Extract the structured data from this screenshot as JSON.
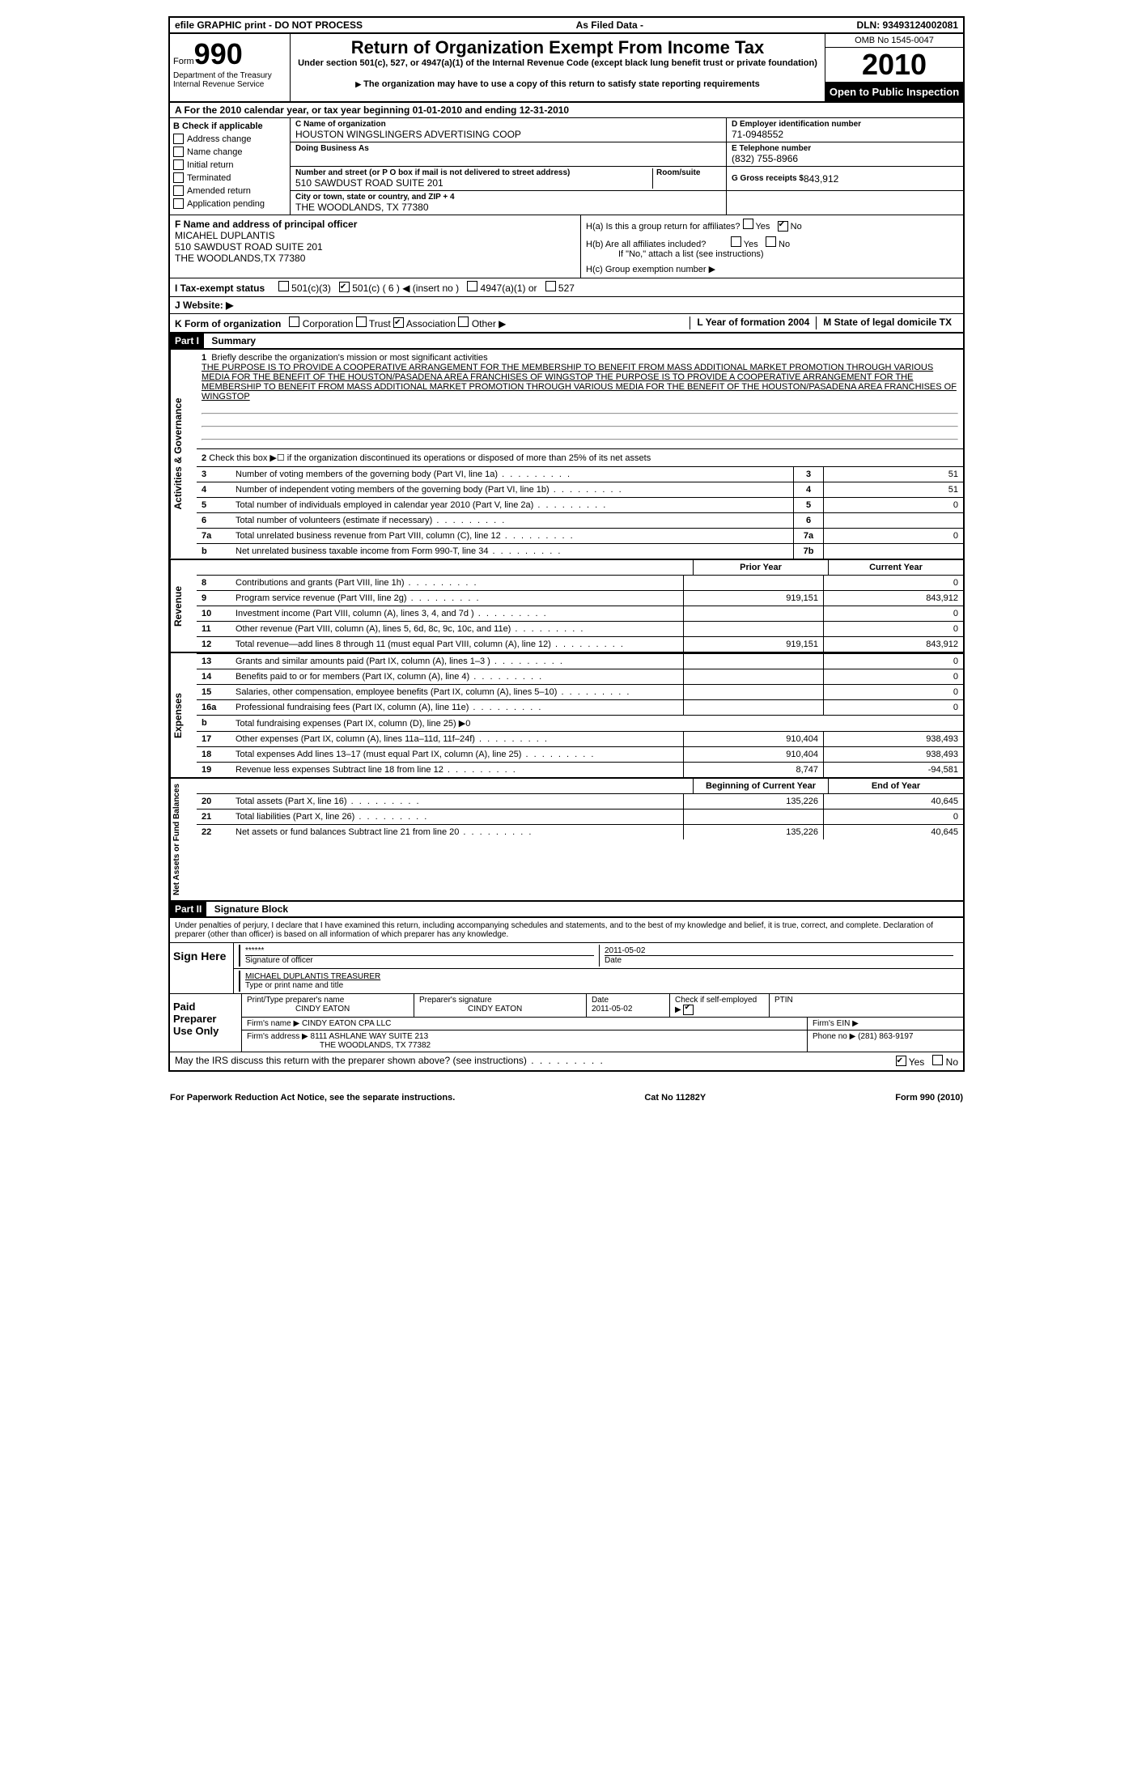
{
  "topbar": {
    "left": "efile GRAPHIC print - DO NOT PROCESS",
    "mid": "As Filed Data -",
    "right": "DLN: 93493124002081"
  },
  "header": {
    "form_label": "Form",
    "form_number": "990",
    "title": "Return of Organization Exempt From Income Tax",
    "subtitle": "Under section 501(c), 527, or 4947(a)(1) of the Internal Revenue Code (except black lung benefit trust or private foundation)",
    "dept1": "Department of the Treasury",
    "dept2": "Internal Revenue Service",
    "note": "The organization may have to use a copy of this return to satisfy state reporting requirements",
    "omb": "OMB No 1545-0047",
    "year": "2010",
    "open_public": "Open to Public Inspection"
  },
  "row_a": "A For the 2010 calendar year, or tax year beginning 01-01-2010    and ending 12-31-2010",
  "section_b": {
    "label": "B Check if applicable",
    "items": [
      "Address change",
      "Name change",
      "Initial return",
      "Terminated",
      "Amended return",
      "Application pending"
    ]
  },
  "section_c": {
    "name_label": "C Name of organization",
    "name": "HOUSTON WINGSLINGERS ADVERTISING COOP",
    "dba_label": "Doing Business As",
    "dba": "",
    "street_label": "Number and street (or P O  box if mail is not delivered to street address)",
    "street": "510 SAWDUST ROAD SUITE 201",
    "room_label": "Room/suite",
    "city_label": "City or town, state or country, and ZIP + 4",
    "city": "THE WOODLANDS, TX  77380"
  },
  "section_d": {
    "ein_label": "D Employer identification number",
    "ein": "71-0948552",
    "phone_label": "E Telephone number",
    "phone": "(832) 755-8966",
    "gross_label": "G Gross receipts $",
    "gross": "843,912"
  },
  "section_f": {
    "label": "F  Name and address of principal officer",
    "name": "MICAHEL DUPLANTIS",
    "addr1": "510 SAWDUST ROAD SUITE 201",
    "addr2": "THE WOODLANDS,TX  77380"
  },
  "section_h": {
    "ha": "H(a)  Is this a group return for affiliates?",
    "hb": "H(b)  Are all affiliates included?",
    "hb_note": "If \"No,\" attach a list  (see instructions)",
    "hc": "H(c)   Group exemption number ▶"
  },
  "row_i": {
    "label": "I  Tax-exempt status",
    "opts": [
      "501(c)(3)",
      "501(c) ( 6 ) ◀ (insert no )",
      "4947(a)(1) or",
      "527"
    ]
  },
  "row_j": "J  Website: ▶",
  "row_k": {
    "label": "K Form of organization",
    "opts": [
      "Corporation",
      "Trust",
      "Association",
      "Other ▶"
    ],
    "l": "L Year of formation  2004",
    "m": "M State of legal domicile  TX"
  },
  "part1": {
    "header": "Part I",
    "title": "Summary"
  },
  "mission": {
    "num": "1",
    "label": "Briefly describe the organization's mission or most significant activities",
    "text": "THE PURPOSE IS TO PROVIDE A COOPERATIVE ARRANGEMENT FOR THE MEMBERSHIP TO BENEFIT FROM MASS ADDITIONAL MARKET PROMOTION THROUGH VARIOUS MEDIA FOR THE BENEFIT OF THE HOUSTON/PASADENA AREA FRANCHISES OF WINGSTOP  THE PURPOSE IS TO PROVIDE A COOPERATIVE ARRANGEMENT FOR THE MEMBERSHIP TO BENEFIT FROM MASS ADDITIONAL MARKET PROMOTION THROUGH VARIOUS MEDIA FOR THE BENEFIT OF THE HOUSTON/PASADENA AREA FRANCHISES OF WINGSTOP"
  },
  "line2": "Check this box ▶☐ if the organization discontinued its operations or disposed of more than 25% of its net assets",
  "lines_single": [
    {
      "num": "3",
      "label": "Number of voting members of the governing body (Part VI, line 1a)",
      "box": "3",
      "val": "51"
    },
    {
      "num": "4",
      "label": "Number of independent voting members of the governing body (Part VI, line 1b)",
      "box": "4",
      "val": "51"
    },
    {
      "num": "5",
      "label": "Total number of individuals employed in calendar year 2010 (Part V, line 2a)",
      "box": "5",
      "val": "0"
    },
    {
      "num": "6",
      "label": "Total number of volunteers (estimate if necessary)",
      "box": "6",
      "val": ""
    },
    {
      "num": "7a",
      "label": "Total unrelated business revenue from Part VIII, column (C), line 12",
      "box": "7a",
      "val": "0"
    },
    {
      "num": "b",
      "label": "Net unrelated business taxable income from Form 990-T, line 34",
      "box": "7b",
      "val": ""
    }
  ],
  "col_headers": {
    "prior": "Prior Year",
    "current": "Current Year"
  },
  "revenue": [
    {
      "num": "8",
      "label": "Contributions and grants (Part VIII, line 1h)",
      "prior": "",
      "current": "0"
    },
    {
      "num": "9",
      "label": "Program service revenue (Part VIII, line 2g)",
      "prior": "919,151",
      "current": "843,912"
    },
    {
      "num": "10",
      "label": "Investment income (Part VIII, column (A), lines 3, 4, and 7d )",
      "prior": "",
      "current": "0"
    },
    {
      "num": "11",
      "label": "Other revenue (Part VIII, column (A), lines 5, 6d, 8c, 9c, 10c, and 11e)",
      "prior": "",
      "current": "0"
    },
    {
      "num": "12",
      "label": "Total revenue—add lines 8 through 11 (must equal Part VIII, column (A), line 12)",
      "prior": "919,151",
      "current": "843,912"
    }
  ],
  "expenses": [
    {
      "num": "13",
      "label": "Grants and similar amounts paid (Part IX, column (A), lines 1–3 )",
      "prior": "",
      "current": "0"
    },
    {
      "num": "14",
      "label": "Benefits paid to or for members (Part IX, column (A), line 4)",
      "prior": "",
      "current": "0"
    },
    {
      "num": "15",
      "label": "Salaries, other compensation, employee benefits (Part IX, column (A), lines 5–10)",
      "prior": "",
      "current": "0"
    },
    {
      "num": "16a",
      "label": "Professional fundraising fees (Part IX, column (A), line 11e)",
      "prior": "",
      "current": "0"
    },
    {
      "num": "b",
      "label": "Total fundraising expenses (Part IX, column (D), line 25) ▶0",
      "prior": null,
      "current": null
    },
    {
      "num": "17",
      "label": "Other expenses (Part IX, column (A), lines 11a–11d, 11f–24f)",
      "prior": "910,404",
      "current": "938,493"
    },
    {
      "num": "18",
      "label": "Total expenses  Add lines 13–17 (must equal Part IX, column (A), line 25)",
      "prior": "910,404",
      "current": "938,493"
    },
    {
      "num": "19",
      "label": "Revenue less expenses  Subtract line 18 from line 12",
      "prior": "8,747",
      "current": "-94,581"
    }
  ],
  "net_headers": {
    "begin": "Beginning of Current Year",
    "end": "End of Year"
  },
  "net": [
    {
      "num": "20",
      "label": "Total assets (Part X, line 16)",
      "prior": "135,226",
      "current": "40,645"
    },
    {
      "num": "21",
      "label": "Total liabilities (Part X, line 26)",
      "prior": "",
      "current": "0"
    },
    {
      "num": "22",
      "label": "Net assets or fund balances  Subtract line 21 from line 20",
      "prior": "135,226",
      "current": "40,645"
    }
  ],
  "part2": {
    "header": "Part II",
    "title": "Signature Block"
  },
  "perjury": "Under penalties of perjury, I declare that I have examined this return, including accompanying schedules and statements, and to the best of my knowledge and belief, it is true, correct, and complete. Declaration of preparer (other than officer) is based on all information of which preparer has any knowledge.",
  "sign": {
    "label": "Sign Here",
    "stars": "******",
    "sig_label": "Signature of officer",
    "date": "2011-05-02",
    "date_label": "Date",
    "name": "MICHAEL DUPLANTIS TREASURER",
    "name_label": "Type or print name and title"
  },
  "preparer": {
    "label": "Paid Preparer Use Only",
    "print_label": "Print/Type preparer's name",
    "print_name": "CINDY EATON",
    "sig_label": "Preparer's signature",
    "sig_name": "CINDY EATON",
    "date_label": "Date",
    "date": "2011-05-02",
    "self_label": "Check if self-employed ▶",
    "ptin_label": "PTIN",
    "firm_name_label": "Firm's name   ▶",
    "firm_name": "CINDY EATON CPA LLC",
    "firm_ein_label": "Firm's EIN   ▶",
    "firm_addr_label": "Firm's address ▶",
    "firm_addr1": "8111 ASHLANE WAY SUITE 213",
    "firm_addr2": "THE WOODLANDS, TX  77382",
    "phone_label": "Phone no  ▶",
    "phone": "(281) 863-9197"
  },
  "discuss": "May the IRS discuss this return with the preparer shown above? (see instructions)",
  "footer": {
    "left": "For Paperwork Reduction Act Notice, see the separate instructions.",
    "mid": "Cat No 11282Y",
    "right": "Form 990 (2010)"
  },
  "vtabs": {
    "gov": "Activities & Governance",
    "rev": "Revenue",
    "exp": "Expenses",
    "net": "Net Assets or Fund Balances"
  }
}
